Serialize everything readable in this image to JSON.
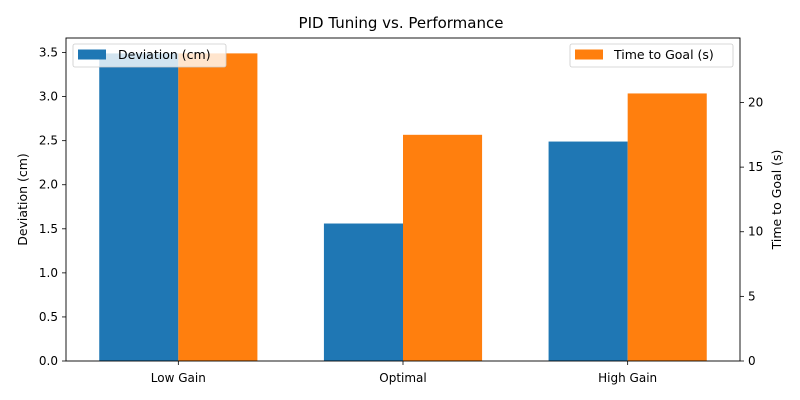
{
  "chart_data": {
    "type": "bar",
    "title": "PID Tuning vs. Performance",
    "categories": [
      "Low Gain",
      "Optimal",
      "High Gain"
    ],
    "series": [
      {
        "name": "Deviation (cm)",
        "axis": "left",
        "color": "#1f77b4",
        "values": [
          3.49,
          1.56,
          2.49
        ]
      },
      {
        "name": "Time to Goal (s)",
        "axis": "right",
        "color": "#ff7f0e",
        "values": [
          23.8,
          17.5,
          20.7
        ]
      }
    ],
    "ylabel": "Deviation (cm)",
    "ylabel_right": "Time to Goal (s)",
    "ylim": [
      0,
      3.665
    ],
    "ylim_right": [
      0,
      24.99
    ],
    "yticks": [
      "0.0",
      "0.5",
      "1.0",
      "1.5",
      "2.0",
      "2.5",
      "3.0",
      "3.5"
    ],
    "yticks_right": [
      "0",
      "5",
      "10",
      "15",
      "20"
    ],
    "legend_left_placement": "top-left",
    "legend_right_placement": "top-right",
    "grid": false
  }
}
